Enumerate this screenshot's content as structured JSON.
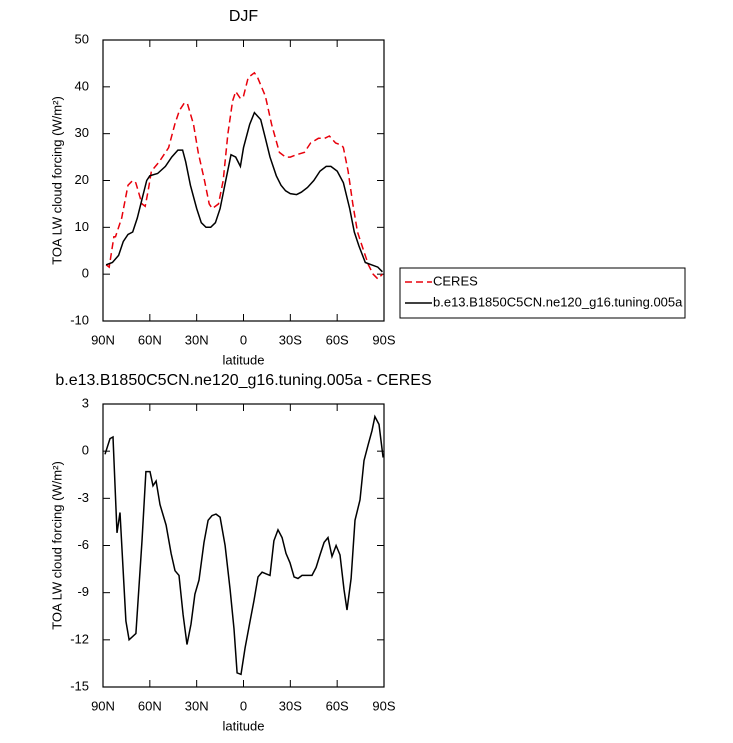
{
  "chart_data": [
    {
      "type": "line",
      "title": "DJF",
      "x_label": "latitude",
      "y_label": "TOA LW cloud forcing (W/m²)",
      "xlim": [
        90,
        -90
      ],
      "xticks": [
        {
          "value": 90,
          "label": "90N"
        },
        {
          "value": 60,
          "label": "60N"
        },
        {
          "value": 30,
          "label": "30N"
        },
        0,
        {
          "value": -30,
          "label": "30S"
        },
        {
          "value": -60,
          "label": "60S"
        },
        {
          "value": -90,
          "label": "90S"
        }
      ],
      "ylim": [
        -10,
        50
      ],
      "yticks": [
        -10,
        0,
        10,
        20,
        30,
        40,
        50
      ],
      "legend": "outside-right",
      "series": [
        {
          "name": "CERES",
          "color": "#e8000b",
          "dash": "dashed",
          "x": [
            88,
            86,
            83,
            82,
            78,
            74,
            71,
            69,
            65,
            63,
            61,
            59,
            54,
            48,
            44,
            41,
            38,
            36,
            32,
            29,
            25,
            22,
            20,
            16,
            13,
            10,
            7,
            5,
            2,
            0,
            -3,
            -7,
            -9,
            -14,
            -18,
            -23,
            -27,
            -30,
            -34,
            -39,
            -43,
            -48,
            -52,
            -55,
            -59,
            -63,
            -64,
            -67,
            -70,
            -73,
            -77,
            -80,
            -83,
            -86,
            -89
          ],
          "values": [
            2,
            1.5,
            8,
            8,
            12,
            19,
            20,
            19.5,
            15,
            14.5,
            18,
            22,
            24,
            27,
            32,
            35,
            36.5,
            36.5,
            32,
            26,
            20,
            15,
            14,
            15,
            20,
            30,
            37,
            39,
            37.5,
            38,
            42,
            43,
            42,
            38,
            32,
            26,
            25,
            25,
            25.5,
            26,
            28,
            29,
            29,
            29.5,
            28,
            27.5,
            27,
            22,
            15,
            9,
            5,
            2,
            0,
            -1,
            0
          ]
        },
        {
          "name": "b.e13.B1850C5CN.ne120_g16.tuning.005a",
          "color": "#000000",
          "dash": "solid",
          "x": [
            88,
            84,
            80,
            77,
            74,
            71,
            68,
            65,
            62,
            60,
            55,
            50,
            46,
            42,
            39,
            37,
            34,
            30,
            27,
            24,
            21,
            18,
            15,
            12,
            8,
            5,
            2,
            0,
            -4,
            -7,
            -11,
            -14,
            -17,
            -21,
            -24,
            -27,
            -30,
            -34,
            -37,
            -41,
            -45,
            -49,
            -53,
            -56,
            -60,
            -64,
            -68,
            -71,
            -74,
            -78,
            -82,
            -86,
            -89
          ],
          "values": [
            2,
            2.5,
            4,
            7,
            8.5,
            9,
            12,
            16,
            20,
            21,
            21.5,
            23,
            25,
            26.5,
            26.5,
            24,
            19,
            14,
            11,
            10,
            10,
            11,
            14,
            19,
            25.5,
            25,
            23,
            27,
            32,
            34.5,
            33,
            29,
            25,
            21,
            19,
            17.8,
            17.2,
            17,
            17.5,
            18.5,
            20,
            22,
            23,
            23,
            22,
            19.5,
            14,
            9,
            6,
            2.5,
            2,
            1.5,
            0.5
          ]
        }
      ]
    },
    {
      "type": "line",
      "title": "b.e13.B1850C5CN.ne120_g16.tuning.005a - CERES",
      "x_label": "latitude",
      "y_label": "TOA LW cloud forcing (W/m²)",
      "xlim": [
        90,
        -90
      ],
      "xticks": [
        {
          "value": 90,
          "label": "90N"
        },
        {
          "value": 60,
          "label": "60N"
        },
        {
          "value": 30,
          "label": "30N"
        },
        0,
        {
          "value": -30,
          "label": "30S"
        },
        {
          "value": -60,
          "label": "60S"
        },
        {
          "value": -90,
          "label": "90S"
        }
      ],
      "ylim": [
        -15,
        3
      ],
      "yticks": [
        -15,
        -12,
        -9,
        -6,
        -3,
        0,
        3
      ],
      "color": "#000000",
      "x": [
        88.7,
        85.5,
        83.6,
        81,
        79.1,
        75.3,
        73.3,
        68.9,
        65,
        62.5,
        59.9,
        58,
        56,
        53.5,
        49.6,
        46.4,
        43.9,
        41.3,
        38.7,
        36.2,
        33.6,
        31.1,
        28.5,
        25.3,
        22.7,
        20.2,
        17.6,
        15,
        11.8,
        8.6,
        6.1,
        4.1,
        1.6,
        -1,
        -4.2,
        -6.7,
        -9.3,
        -11.9,
        -14.4,
        -17,
        -19.5,
        -22.1,
        -24.7,
        -27.2,
        -29.8,
        -32.4,
        -34.9,
        -37.5,
        -40,
        -43.9,
        -46.5,
        -49,
        -51.6,
        -54.1,
        -56.7,
        -59.3,
        -61.8,
        -64.4,
        -66.3,
        -68.9,
        -71.4,
        -74.6,
        -77.2,
        -79.8,
        -82.3,
        -84.2,
        -86.8,
        -89.4
      ],
      "values": [
        -0.2,
        0.8,
        0.9,
        -5.2,
        -3.9,
        -10.8,
        -12,
        -11.6,
        -5.7,
        -1.3,
        -1.3,
        -2.2,
        -1.9,
        -3.4,
        -4.7,
        -6.5,
        -7.6,
        -7.9,
        -10.4,
        -12.3,
        -11,
        -9.1,
        -8.2,
        -5.8,
        -4.4,
        -4.1,
        -4,
        -4.2,
        -6,
        -8.8,
        -11.3,
        -14.1,
        -14.2,
        -12.5,
        -10.8,
        -9.5,
        -8,
        -7.7,
        -7.8,
        -7.9,
        -5.7,
        -5,
        -5.5,
        -6.5,
        -7.1,
        -8,
        -8.1,
        -7.9,
        -7.9,
        -7.9,
        -7.4,
        -6.6,
        -5.8,
        -5.5,
        -6.7,
        -6,
        -6.6,
        -8.8,
        -10.1,
        -8.1,
        -4.4,
        -3.1,
        -0.6,
        0.4,
        1.3,
        2.2,
        1.7,
        -0.4
      ]
    }
  ]
}
